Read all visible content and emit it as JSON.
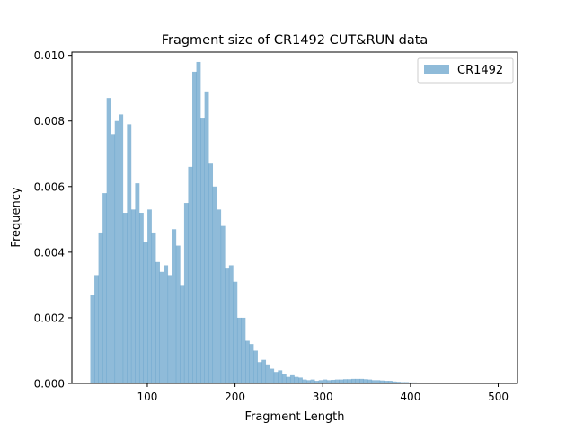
{
  "chart_data": {
    "type": "bar",
    "title": "Fragment size of CR1492 CUT&RUN data",
    "xlabel": "Fragment Length",
    "ylabel": "Frequency",
    "xlim": [
      14,
      522
    ],
    "ylim": [
      0,
      0.0101
    ],
    "xticks": [
      100,
      200,
      300,
      400,
      500
    ],
    "xtick_labels": [
      "100",
      "200",
      "300",
      "400",
      "500"
    ],
    "yticks": [
      0,
      0.002,
      0.004,
      0.006,
      0.008,
      0.01
    ],
    "ytick_labels": [
      "0.000",
      "0.002",
      "0.004",
      "0.006",
      "0.008",
      "0.010"
    ],
    "legend_position": "top-right",
    "series": [
      {
        "name": "CR1492",
        "color": "#1f77b4",
        "opacity": 0.5,
        "bin_start": 35,
        "bin_width": 4.65,
        "values": [
          0.0027,
          0.0033,
          0.0046,
          0.0058,
          0.0087,
          0.0076,
          0.008,
          0.0082,
          0.0052,
          0.0079,
          0.0053,
          0.0061,
          0.0052,
          0.0043,
          0.0053,
          0.0046,
          0.0037,
          0.0034,
          0.0036,
          0.0033,
          0.0047,
          0.0042,
          0.003,
          0.0055,
          0.0066,
          0.0095,
          0.0098,
          0.0081,
          0.0089,
          0.0067,
          0.006,
          0.0053,
          0.0048,
          0.0035,
          0.0036,
          0.0031,
          0.002,
          0.002,
          0.0013,
          0.0012,
          0.001,
          0.00065,
          0.00072,
          0.00058,
          0.00045,
          0.00035,
          0.0004,
          0.0003,
          0.0002,
          0.00025,
          0.0002,
          0.00018,
          0.00012,
          0.0001,
          0.00012,
          8e-05,
          0.0001,
          0.00012,
          0.0001,
          0.00011,
          0.00012,
          0.00012,
          0.00013,
          0.00013,
          0.00014,
          0.00014,
          0.00014,
          0.00013,
          0.00012,
          0.0001,
          0.0001,
          9e-05,
          8e-05,
          8e-05,
          6e-05,
          5e-05,
          4e-05,
          4e-05,
          3e-05,
          3e-05,
          2e-05,
          2e-05,
          2e-05,
          1e-05,
          1e-05,
          1e-05,
          1e-05,
          1e-05,
          1e-05,
          1e-05
        ]
      }
    ]
  }
}
